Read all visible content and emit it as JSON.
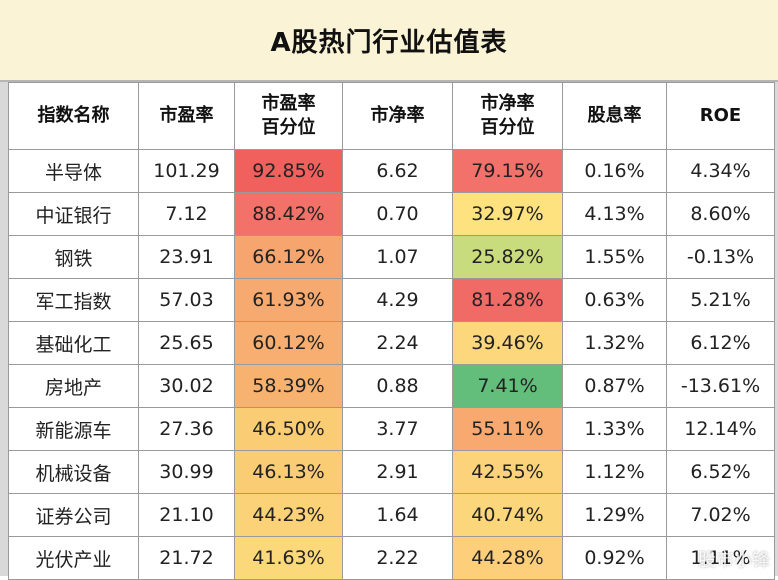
{
  "title": "A股热门行业估值表",
  "headers": [
    {
      "line1": "指数名称",
      "line2": ""
    },
    {
      "line1": "市盈率",
      "line2": ""
    },
    {
      "line1": "市盈率",
      "line2": "百分位"
    },
    {
      "line1": "市净率",
      "line2": ""
    },
    {
      "line1": "市净率",
      "line2": "百分位"
    },
    {
      "line1": "股息率",
      "line2": ""
    },
    {
      "line1": "ROE",
      "line2": ""
    }
  ],
  "rows": [
    {
      "name": "半导体",
      "pe": "101.29",
      "pe_pct": "92.85%",
      "pb": "6.62",
      "pb_pct": "79.15%",
      "dy": "0.16%",
      "roe": "4.34%"
    },
    {
      "name": "中证银行",
      "pe": "7.12",
      "pe_pct": "88.42%",
      "pb": "0.70",
      "pb_pct": "32.97%",
      "dy": "4.13%",
      "roe": "8.60%"
    },
    {
      "name": "钢铁",
      "pe": "23.91",
      "pe_pct": "66.12%",
      "pb": "1.07",
      "pb_pct": "25.82%",
      "dy": "1.55%",
      "roe": "-0.13%"
    },
    {
      "name": "军工指数",
      "pe": "57.03",
      "pe_pct": "61.93%",
      "pb": "4.29",
      "pb_pct": "81.28%",
      "dy": "0.63%",
      "roe": "5.21%"
    },
    {
      "name": "基础化工",
      "pe": "25.65",
      "pe_pct": "60.12%",
      "pb": "2.24",
      "pb_pct": "39.46%",
      "dy": "1.32%",
      "roe": "6.12%"
    },
    {
      "name": "房地产",
      "pe": "30.02",
      "pe_pct": "58.39%",
      "pb": "0.88",
      "pb_pct": "7.41%",
      "dy": "0.87%",
      "roe": "-13.61%"
    },
    {
      "name": "新能源车",
      "pe": "27.36",
      "pe_pct": "46.50%",
      "pb": "3.77",
      "pb_pct": "55.11%",
      "dy": "1.33%",
      "roe": "12.14%"
    },
    {
      "name": "机械设备",
      "pe": "30.99",
      "pe_pct": "46.13%",
      "pb": "2.91",
      "pb_pct": "42.55%",
      "dy": "1.12%",
      "roe": "6.52%"
    },
    {
      "name": "证券公司",
      "pe": "21.10",
      "pe_pct": "44.23%",
      "pb": "1.64",
      "pb_pct": "40.74%",
      "dy": "1.29%",
      "roe": "7.02%"
    },
    {
      "name": "光伏产业",
      "pe": "21.72",
      "pe_pct": "41.63%",
      "pb": "2.22",
      "pb_pct": "44.28%",
      "dy": "0.92%",
      "roe": "1.11%"
    }
  ],
  "colors": {
    "pe_pct": [
      "#f0605c",
      "#f2726a",
      "#f6a56f",
      "#f6aa6f",
      "#f7ae70",
      "#f8b270",
      "#facc74",
      "#facd74",
      "#fbd277",
      "#fbd87a"
    ],
    "pb_pct": [
      "#f2716a",
      "#fde27f",
      "#c8dc7d",
      "#f06a66",
      "#fdd77b",
      "#63be7b",
      "#f8a96f",
      "#fcd37b",
      "#fcd67b",
      "#fdcf7b"
    ]
  },
  "watermark": "股市小锋"
}
